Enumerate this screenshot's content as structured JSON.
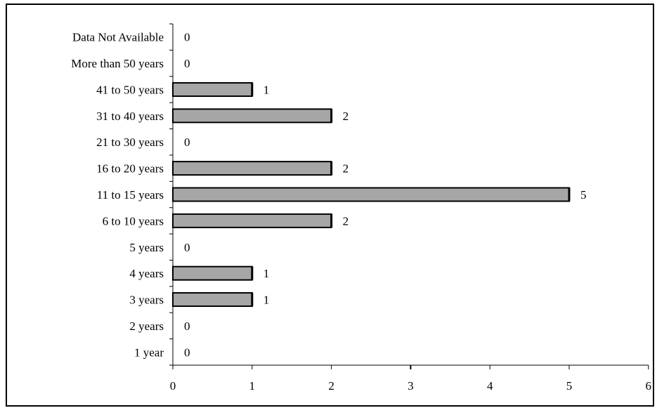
{
  "chart_data": {
    "type": "bar",
    "orientation": "horizontal",
    "categories": [
      "Data Not Available",
      "More than 50 years",
      "41 to 50 years",
      "31 to 40 years",
      "21 to 30 years",
      "16 to 20 years",
      "11 to 15 years",
      "6 to 10 years",
      "5 years",
      "4 years",
      "3 years",
      "2 years",
      "1 year"
    ],
    "values": [
      0,
      0,
      1,
      2,
      0,
      2,
      5,
      2,
      0,
      1,
      1,
      0,
      0
    ],
    "data_labels": [
      "0",
      "0",
      "1",
      "2",
      "0",
      "2",
      "5",
      "2",
      "0",
      "1",
      "1",
      "0",
      "0"
    ],
    "xticks": [
      "0",
      "1",
      "2",
      "3",
      "4",
      "5",
      "6"
    ],
    "xlim": [
      0,
      6
    ],
    "title": "",
    "xlabel": "",
    "ylabel": "",
    "grid": false,
    "legend": "none",
    "colors": {
      "bar_fill": "#a6a6a6",
      "bar_stroke": "#000000",
      "axis": "#000000"
    }
  }
}
